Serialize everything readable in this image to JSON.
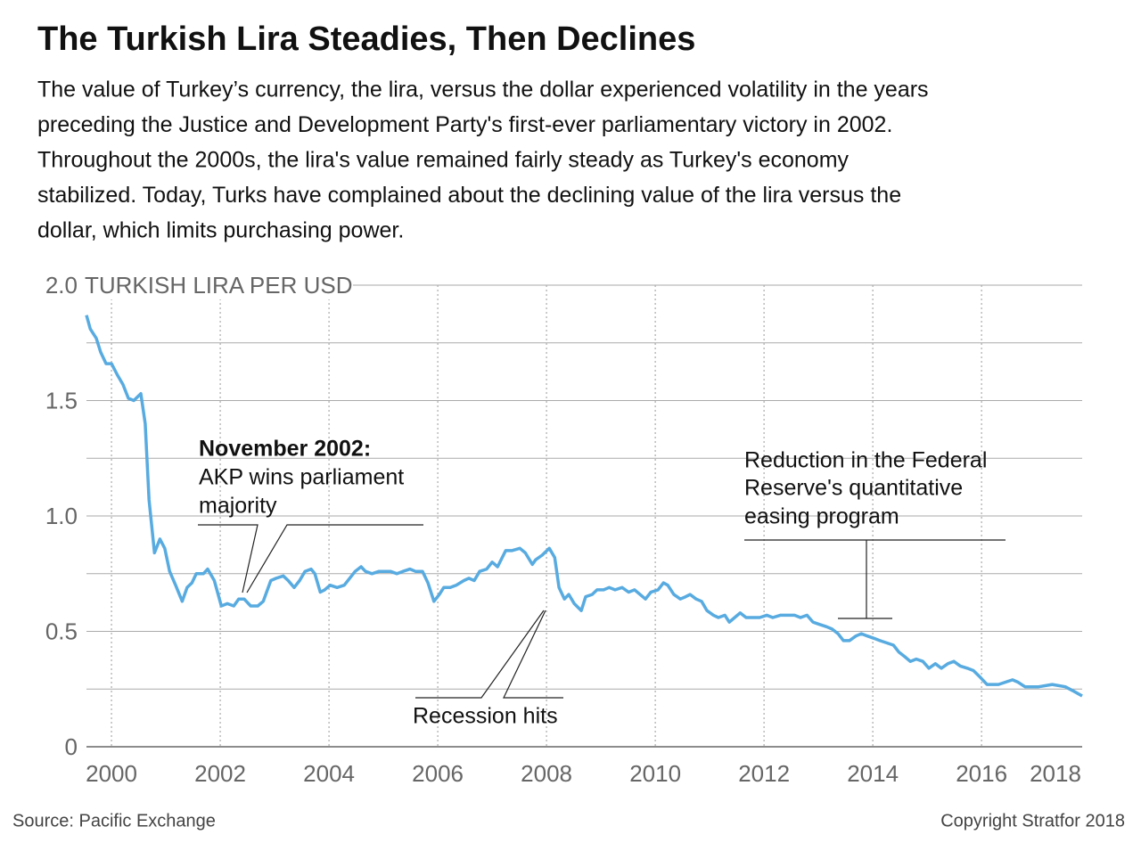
{
  "chart_data": {
    "type": "line",
    "title": "The Turkish Lira Steadies, Then Declines",
    "subtitle": [
      "The value of Turkey’s currency, the lira, versus the dollar experienced volatility in the years",
      "preceding the Justice and Development Party's first-ever parliamentary victory in 2002.",
      "Throughout the 2000s, the lira's value remained fairly steady as Turkey's economy",
      "stabilized. Today, Turks have complained about the declining value of the lira versus the",
      "dollar, which limits purchasing power."
    ],
    "ylabel": "TURKISH LIRA PER USD",
    "source": "Source: Pacific Exchange",
    "copyright": "Copyright Stratfor 2018",
    "annotations": [
      {
        "title": "November 2002:",
        "lines": [
          "AKP wins parliament",
          "majority"
        ]
      },
      {
        "lines": [
          "Recession hits"
        ]
      },
      {
        "lines": [
          "Reduction in the Federal",
          "Reserve's quantitative",
          "easing program"
        ]
      }
    ],
    "xlim": [
      1999.54,
      2017.85
    ],
    "xticks": [
      2000,
      2002,
      2004,
      2006,
      2008,
      2010,
      2012,
      2014,
      2016,
      2018
    ],
    "ylim": [
      0,
      2
    ],
    "yticks": [
      0,
      0.5,
      {
        "value": 1,
        "label": "1.0"
      },
      1.5,
      {
        "value": 2,
        "label": "2.0"
      }
    ],
    "yticks_minor": [
      0.25,
      0.75,
      1.25,
      1.75
    ],
    "grid": true,
    "series": [
      {
        "name": "Turkish lira per USD",
        "color": "#58abe0",
        "x": [
          1999.54,
          1999.61,
          1999.72,
          1999.8,
          1999.9,
          2000.0,
          2000.11,
          2000.21,
          2000.31,
          2000.41,
          2000.54,
          2000.62,
          2000.69,
          2000.79,
          2000.89,
          2000.98,
          2001.07,
          2001.18,
          2001.3,
          2001.39,
          2001.48,
          2001.56,
          2001.69,
          2001.77,
          2001.89,
          2002.02,
          2002.13,
          2002.25,
          2002.34,
          2002.44,
          2002.56,
          2002.69,
          2002.79,
          2002.93,
          2003.03,
          2003.16,
          2003.25,
          2003.36,
          2003.46,
          2003.56,
          2003.67,
          2003.74,
          2003.84,
          2003.92,
          2004.02,
          2004.15,
          2004.28,
          2004.38,
          2004.48,
          2004.59,
          2004.67,
          2004.79,
          2004.92,
          2005.03,
          2005.13,
          2005.25,
          2005.36,
          2005.49,
          2005.59,
          2005.72,
          2005.82,
          2005.93,
          2006.03,
          2006.11,
          2006.23,
          2006.34,
          2006.48,
          2006.57,
          2006.67,
          2006.77,
          2006.9,
          2007.0,
          2007.1,
          2007.25,
          2007.36,
          2007.51,
          2007.61,
          2007.74,
          2007.8,
          2007.92,
          2008.05,
          2008.15,
          2008.23,
          2008.33,
          2008.41,
          2008.51,
          2008.64,
          2008.72,
          2008.84,
          2008.93,
          2009.05,
          2009.15,
          2009.26,
          2009.39,
          2009.51,
          2009.62,
          2009.72,
          2009.82,
          2009.92,
          2010.05,
          2010.15,
          2010.23,
          2010.34,
          2010.46,
          2010.56,
          2010.64,
          2010.75,
          2010.85,
          2010.95,
          2011.07,
          2011.16,
          2011.28,
          2011.36,
          2011.46,
          2011.56,
          2011.67,
          2011.8,
          2011.92,
          2012.05,
          2012.16,
          2012.3,
          2012.43,
          2012.56,
          2012.67,
          2012.79,
          2012.9,
          2013.02,
          2013.15,
          2013.25,
          2013.36,
          2013.46,
          2013.57,
          2013.69,
          2013.79,
          2013.9,
          2014.02,
          2014.13,
          2014.26,
          2014.38,
          2014.48,
          2014.59,
          2014.69,
          2014.8,
          2014.92,
          2015.03,
          2015.15,
          2015.26,
          2015.38,
          2015.49,
          2015.61,
          2015.74,
          2015.85,
          2015.98,
          2016.1,
          2016.21,
          2016.31,
          2016.44,
          2016.57,
          2016.67,
          2016.8,
          2016.93,
          2017.05,
          2017.3,
          2017.54,
          2017.7,
          2017.85
        ],
        "values": [
          1.87,
          1.81,
          1.77,
          1.71,
          1.66,
          1.66,
          1.61,
          1.57,
          1.51,
          1.5,
          1.53,
          1.4,
          1.07,
          0.84,
          0.9,
          0.86,
          0.76,
          0.7,
          0.63,
          0.69,
          0.71,
          0.75,
          0.75,
          0.77,
          0.72,
          0.61,
          0.62,
          0.61,
          0.64,
          0.64,
          0.61,
          0.61,
          0.63,
          0.72,
          0.73,
          0.74,
          0.72,
          0.69,
          0.72,
          0.76,
          0.77,
          0.75,
          0.67,
          0.68,
          0.7,
          0.69,
          0.7,
          0.73,
          0.76,
          0.78,
          0.76,
          0.75,
          0.76,
          0.76,
          0.76,
          0.75,
          0.76,
          0.77,
          0.76,
          0.76,
          0.71,
          0.63,
          0.66,
          0.69,
          0.69,
          0.7,
          0.72,
          0.73,
          0.72,
          0.76,
          0.77,
          0.8,
          0.78,
          0.85,
          0.85,
          0.86,
          0.84,
          0.79,
          0.81,
          0.83,
          0.86,
          0.82,
          0.69,
          0.64,
          0.66,
          0.62,
          0.59,
          0.65,
          0.66,
          0.68,
          0.68,
          0.69,
          0.68,
          0.69,
          0.67,
          0.68,
          0.66,
          0.64,
          0.67,
          0.68,
          0.71,
          0.7,
          0.66,
          0.64,
          0.65,
          0.66,
          0.64,
          0.63,
          0.59,
          0.57,
          0.56,
          0.57,
          0.54,
          0.56,
          0.58,
          0.56,
          0.56,
          0.56,
          0.57,
          0.56,
          0.57,
          0.57,
          0.57,
          0.56,
          0.57,
          0.54,
          0.53,
          0.52,
          0.51,
          0.49,
          0.46,
          0.46,
          0.48,
          0.49,
          0.48,
          0.47,
          0.46,
          0.45,
          0.44,
          0.41,
          0.39,
          0.37,
          0.38,
          0.37,
          0.34,
          0.36,
          0.34,
          0.36,
          0.37,
          0.35,
          0.34,
          0.33,
          0.3,
          0.27,
          0.27,
          0.27,
          0.28,
          0.29,
          0.28,
          0.26,
          0.26,
          0.26,
          0.27,
          0.26,
          0.24,
          0.22
        ]
      }
    ]
  }
}
